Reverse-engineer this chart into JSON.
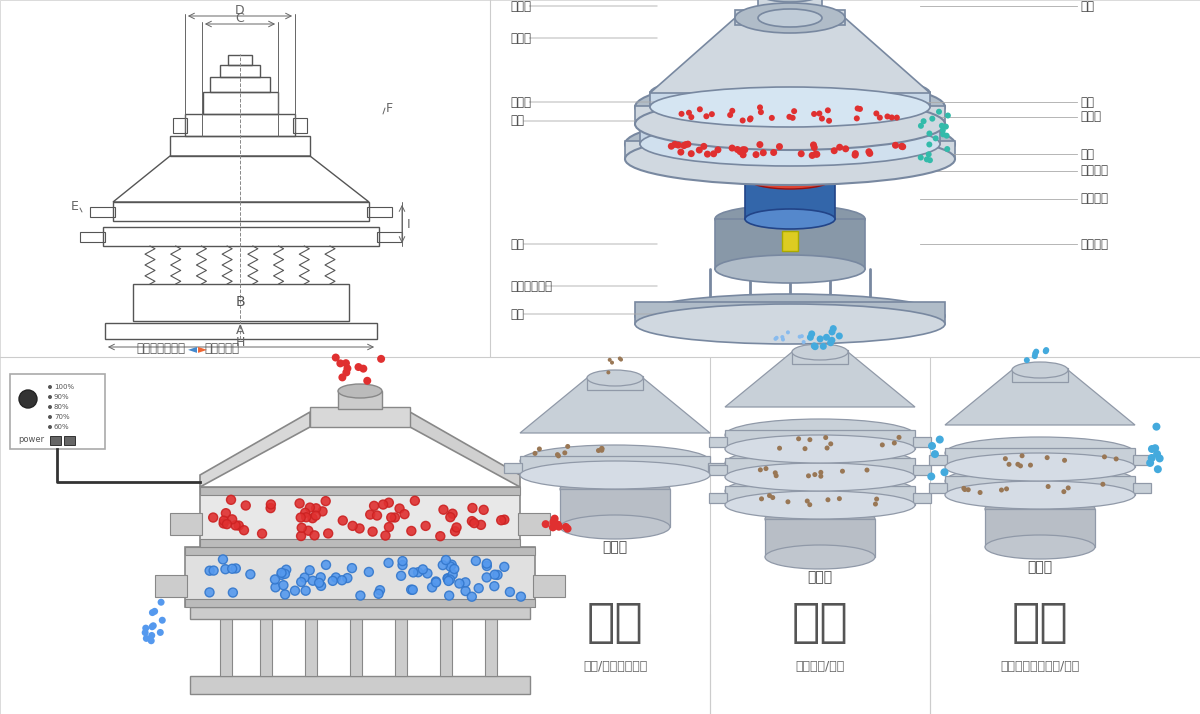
{
  "bg_color": "#ffffff",
  "line_color": "#555555",
  "dim_color": "#666666",
  "red_dot": "#e03030",
  "blue_dot": "#5599ee",
  "teal_dot": "#33bbaa",
  "green_dot": "#44bb66",
  "brown_dot": "#997755",
  "dark_blue_dot": "#224488",
  "top_left_label": "外形尺寸示意图",
  "top_right_label": "结构示意图",
  "arrow_left": "◄",
  "arrow_right": "►",
  "left_labels": [
    [
      "进料口",
      0.88
    ],
    [
      "防尘盖",
      0.84
    ],
    [
      "出料口",
      0.75
    ],
    [
      "束环",
      0.64
    ],
    [
      "弹簧",
      0.52
    ],
    [
      "运输固定螺栓",
      0.42
    ],
    [
      "机座",
      0.32
    ]
  ],
  "right_labels": [
    [
      "筛网",
      0.88
    ],
    [
      "网架",
      0.72
    ],
    [
      "加重块",
      0.66
    ],
    [
      "上部重锤",
      0.58
    ],
    [
      "筛盘",
      0.52
    ],
    [
      "振动电机",
      0.44
    ],
    [
      "下部重锤",
      0.36
    ]
  ],
  "bottom_labels": [
    "单层式",
    "三层式",
    "双层式"
  ],
  "big_labels": [
    "分级",
    "过滤",
    "除杂"
  ],
  "sub_labels": [
    "颗粒/粉末准确分级",
    "去除异物/结块",
    "去除液体中的颗粒/异物"
  ],
  "control_labels": [
    "100%",
    "90%",
    "80%",
    "70%",
    "60%"
  ],
  "dim_labels_top": [
    "D",
    "C",
    "F"
  ],
  "dim_labels_side": [
    "E",
    "I"
  ],
  "dim_labels_bottom": [
    "H",
    "A",
    "B"
  ]
}
